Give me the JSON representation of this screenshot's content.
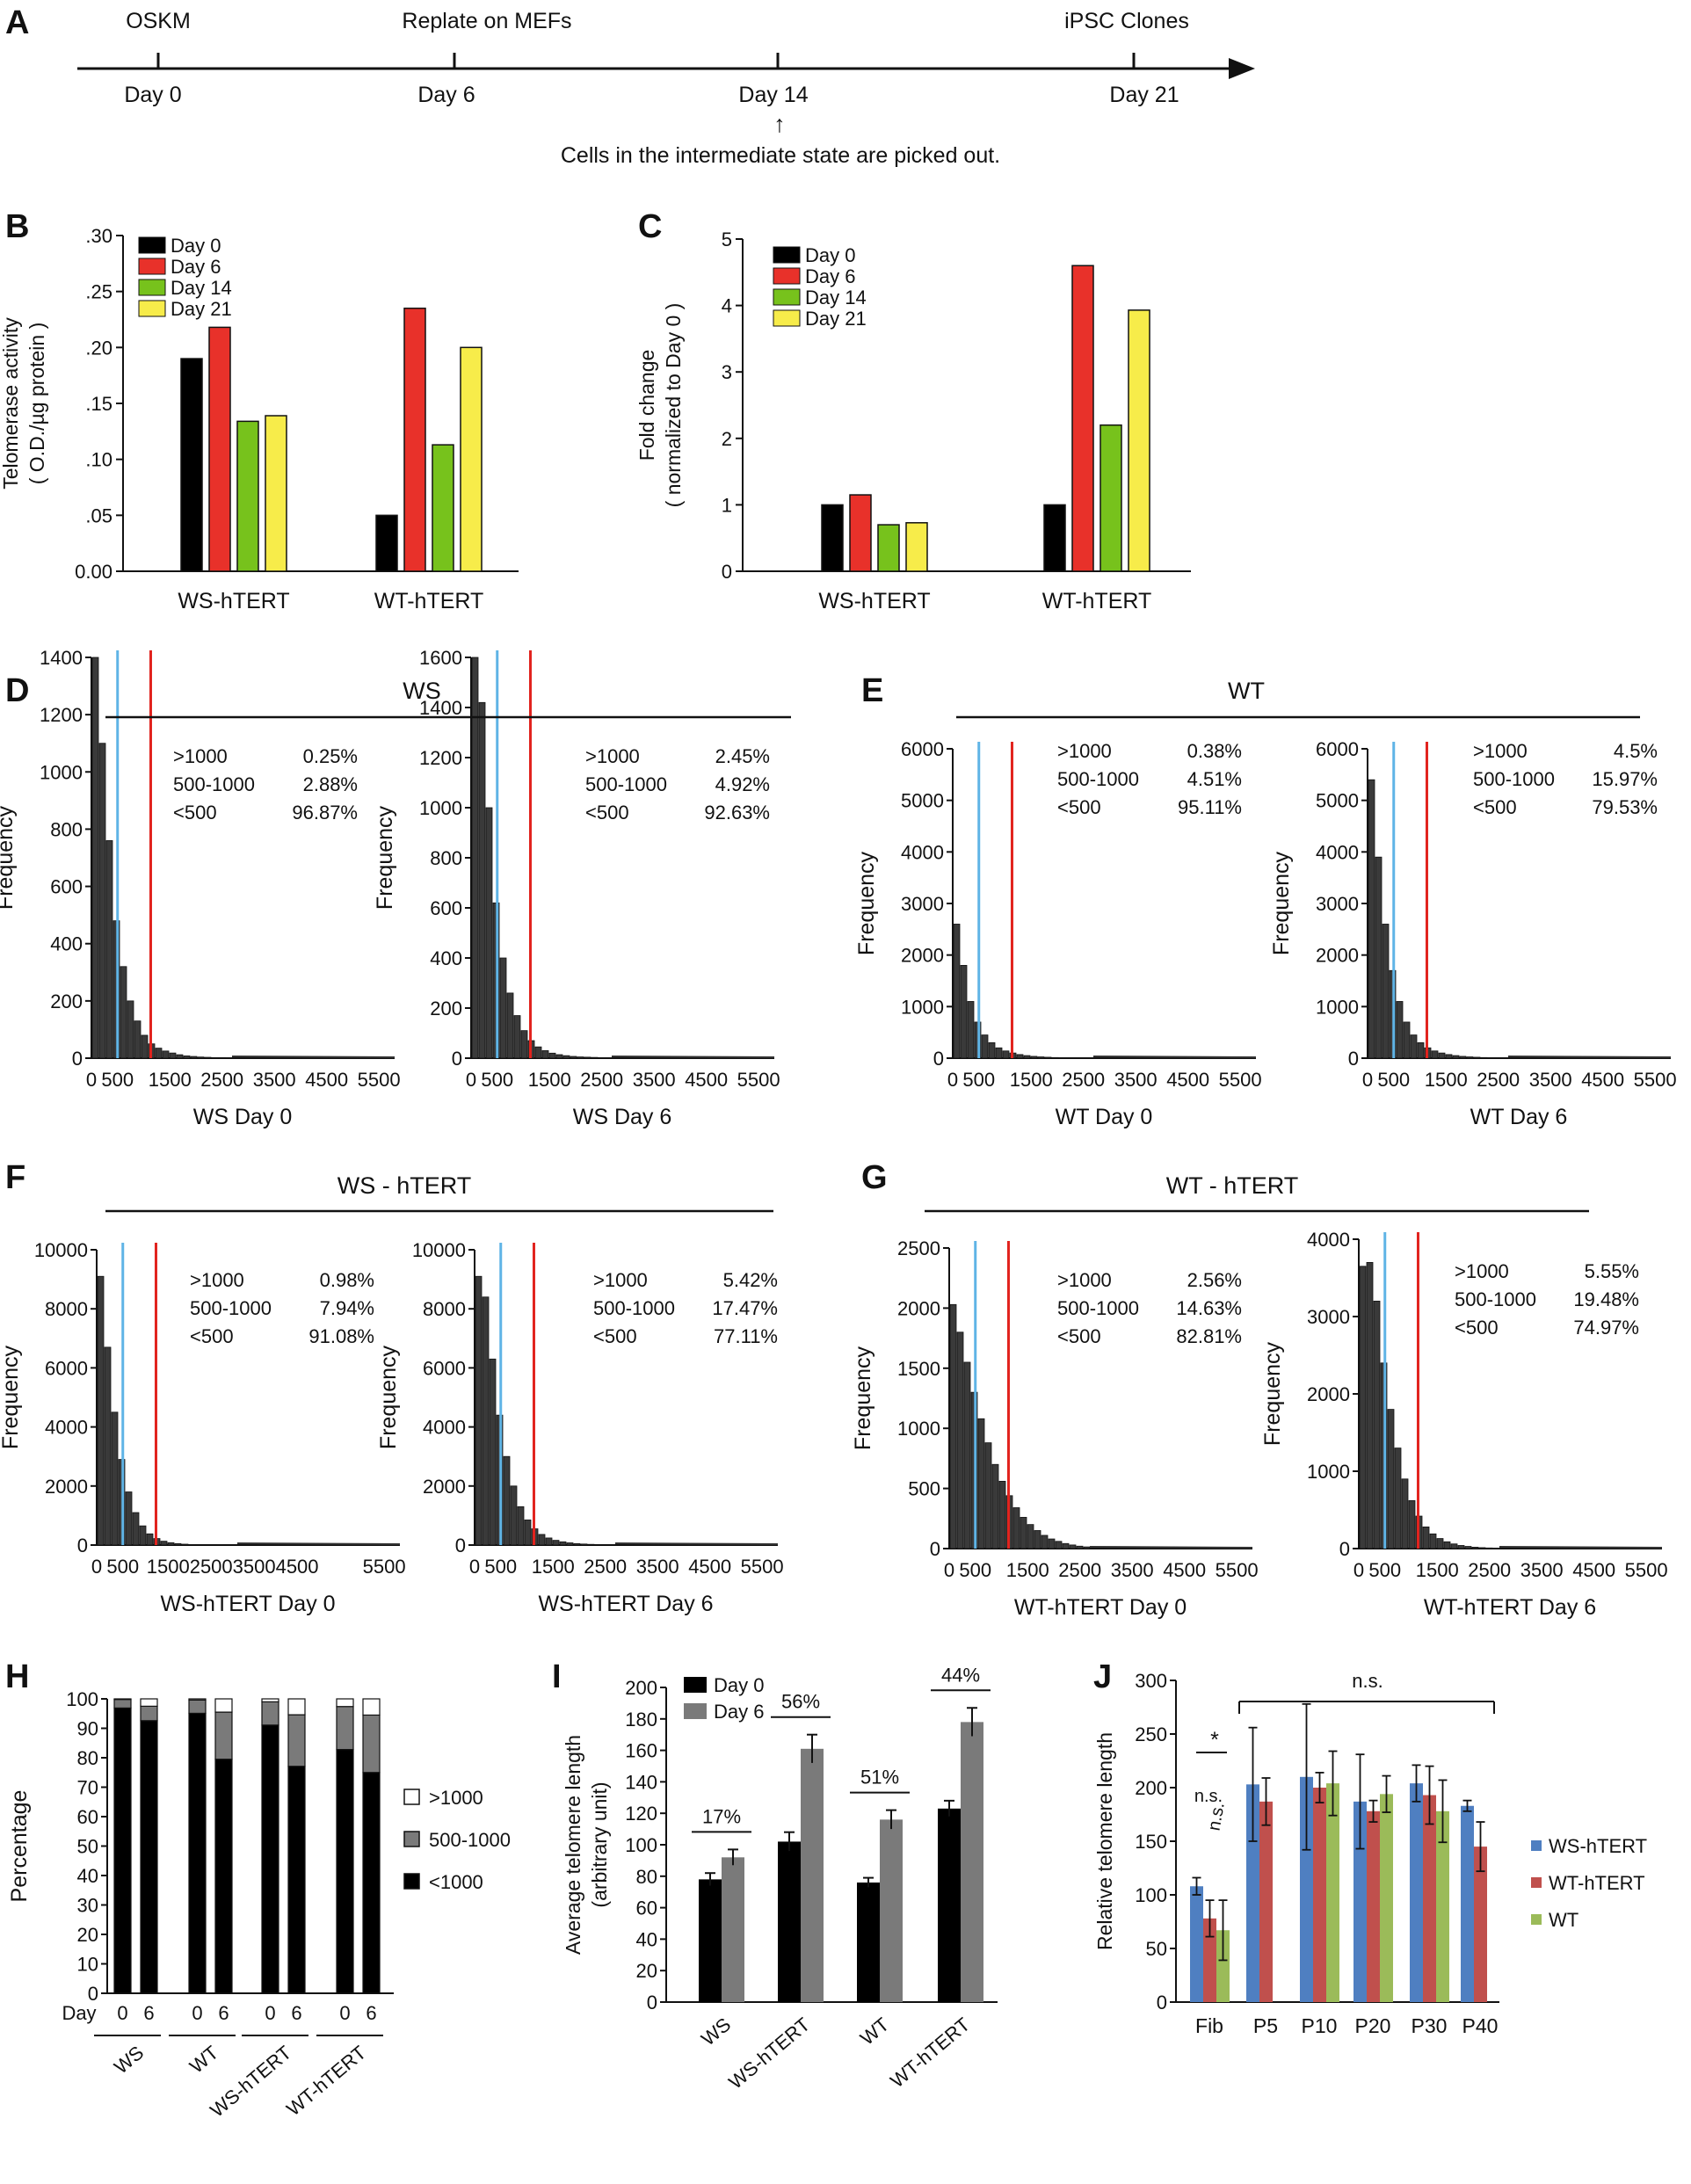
{
  "panels": {
    "A": "A",
    "B": "B",
    "C": "C",
    "D": "D",
    "E": "E",
    "F": "F",
    "G": "G",
    "H": "H",
    "I": "I",
    "J": "J"
  },
  "timeline": {
    "events": [
      {
        "top": "OSKM",
        "bottom": "Day 0"
      },
      {
        "top": "Replate on MEFs",
        "bottom": "Day 6"
      },
      {
        "top": "",
        "bottom": "Day 14"
      },
      {
        "top": "iPSC Clones",
        "bottom": "Day 21"
      }
    ],
    "arrow_symbol": "↑",
    "note": "Cells in the intermediate state are picked out."
  },
  "colors": {
    "day0": "#000000",
    "day6": "#e8312a",
    "day14": "#77c21c",
    "day21": "#f7ec4a",
    "blue_line": "#5fb4e6",
    "red_line": "#e1231e",
    "ws_htert": "#4f7fc1",
    "wt_htert": "#c0504d",
    "wt": "#9bbb59",
    "gray": "#7a7a7a"
  },
  "chart_data": [
    {
      "id": "B",
      "type": "bar",
      "ylabel_lines": [
        "Telomerase activity",
        "( O.D./µg protein )"
      ],
      "ylim": [
        0,
        0.3
      ],
      "yticks": [
        ".30",
        ".25",
        ".20",
        ".15",
        ".10",
        ".05",
        "0.00"
      ],
      "categories": [
        "WS-hTERT",
        "WT-hTERT"
      ],
      "series": [
        {
          "name": "Day 0",
          "values": [
            0.19,
            0.05
          ]
        },
        {
          "name": "Day 6",
          "values": [
            0.218,
            0.235
          ]
        },
        {
          "name": "Day 14",
          "values": [
            0.134,
            0.113
          ]
        },
        {
          "name": "Day 21",
          "values": [
            0.139,
            0.2
          ]
        }
      ]
    },
    {
      "id": "C",
      "type": "bar",
      "ylabel_lines": [
        "Fold change",
        "( normalized to Day 0 )"
      ],
      "ylim": [
        0,
        5
      ],
      "yticks": [
        "5",
        "4",
        "3",
        "2",
        "1",
        "0"
      ],
      "categories": [
        "WS-hTERT",
        "WT-hTERT"
      ],
      "series": [
        {
          "name": "Day 0",
          "values": [
            1.0,
            1.0
          ]
        },
        {
          "name": "Day 6",
          "values": [
            1.15,
            4.6
          ]
        },
        {
          "name": "Day 14",
          "values": [
            0.7,
            2.2
          ]
        },
        {
          "name": "Day 21",
          "values": [
            0.73,
            3.93
          ]
        }
      ]
    },
    {
      "id": "D1",
      "type": "bar",
      "group": "WS",
      "xlabel": "WS Day 0",
      "ylabel": "Frequency",
      "ymax": 1400,
      "yticks": [
        "1400",
        "1200",
        "1000",
        "800",
        "600",
        "400",
        "200",
        "0"
      ],
      "xticks": [
        "0",
        "500",
        "1500",
        "2500",
        "3500",
        "4500",
        "5500"
      ],
      "xmax": 5800,
      "thresholds": [
        500,
        1000
      ],
      "histogram": [
        1400,
        1100,
        760,
        480,
        320,
        200,
        130,
        80,
        50,
        35,
        25,
        18,
        12,
        8,
        6,
        4,
        3,
        2,
        2,
        1
      ],
      "stats": [
        [
          ">1000",
          "0.25%"
        ],
        [
          "500-1000",
          "2.88%"
        ],
        [
          "<500",
          "96.87%"
        ]
      ]
    },
    {
      "id": "D2",
      "type": "bar",
      "group": "WS",
      "xlabel": "WS Day 6",
      "ylabel": "Frequency",
      "ymax": 1600,
      "yticks": [
        "1600",
        "1400",
        "1200",
        "1000",
        "800",
        "600",
        "400",
        "200",
        "0"
      ],
      "xticks": [
        "0",
        "500",
        "1500",
        "2500",
        "3500",
        "4500",
        "5500"
      ],
      "xmax": 5800,
      "thresholds": [
        500,
        1000
      ],
      "histogram": [
        1600,
        1420,
        1000,
        620,
        400,
        260,
        170,
        110,
        70,
        45,
        30,
        20,
        14,
        10,
        7,
        5,
        4,
        3,
        2,
        1
      ],
      "stats": [
        [
          ">1000",
          "2.45%"
        ],
        [
          "500-1000",
          "4.92%"
        ],
        [
          "<500",
          "92.63%"
        ]
      ]
    },
    {
      "id": "E1",
      "type": "bar",
      "group": "WT",
      "xlabel": "WT Day 0",
      "ylabel": "Frequency",
      "ymax": 6000,
      "yticks": [
        "6000",
        "5000",
        "4000",
        "3000",
        "2000",
        "1000",
        "0"
      ],
      "xticks": [
        "0",
        "500",
        "1500",
        "2500",
        "3500",
        "4500",
        "5500"
      ],
      "xmax": 5800,
      "thresholds": [
        500,
        1000
      ],
      "histogram": [
        2600,
        1800,
        1100,
        700,
        450,
        300,
        200,
        140,
        100,
        70,
        50,
        35,
        25,
        18,
        12,
        8,
        5,
        3,
        2,
        1
      ],
      "stats": [
        [
          ">1000",
          "0.38%"
        ],
        [
          "500-1000",
          "4.51%"
        ],
        [
          "<500",
          "95.11%"
        ]
      ]
    },
    {
      "id": "E2",
      "type": "bar",
      "group": "WT",
      "xlabel": "WT Day 6",
      "ylabel": "Frequency",
      "ymax": 6000,
      "yticks": [
        "6000",
        "5000",
        "4000",
        "3000",
        "2000",
        "1000",
        "0"
      ],
      "xticks": [
        "0",
        "500",
        "1500",
        "2500",
        "3500",
        "4500",
        "5500"
      ],
      "xmax": 5800,
      "thresholds": [
        500,
        1000
      ],
      "histogram": [
        5400,
        3900,
        2600,
        1700,
        1100,
        700,
        450,
        300,
        200,
        140,
        100,
        70,
        50,
        35,
        25,
        18,
        12,
        8,
        5,
        3
      ],
      "stats": [
        [
          ">1000",
          "4.5%"
        ],
        [
          "500-1000",
          "15.97%"
        ],
        [
          "<500",
          "79.53%"
        ]
      ]
    },
    {
      "id": "F1",
      "type": "bar",
      "group": "WS - hTERT",
      "xlabel": "WS-hTERT Day 0",
      "ylabel": "Frequency",
      "ymax": 10000,
      "yticks": [
        "10000",
        "8000",
        "6000",
        "4000",
        "2000",
        "0"
      ],
      "xticks": [
        "0",
        "500",
        "1500",
        "2500",
        "3500",
        "4500",
        "5500"
      ],
      "xtick_text": [
        "0",
        "500",
        "1500250035004500",
        "5500"
      ],
      "xmax": 5800,
      "thresholds": [
        500,
        1000
      ],
      "histogram": [
        9100,
        6700,
        4500,
        2900,
        1800,
        1100,
        650,
        380,
        220,
        130,
        80,
        50,
        30,
        18,
        10,
        6,
        4,
        2,
        1,
        1
      ],
      "stats": [
        [
          ">1000",
          "0.98%"
        ],
        [
          "500-1000",
          "7.94%"
        ],
        [
          "<500",
          "91.08%"
        ]
      ]
    },
    {
      "id": "F2",
      "type": "bar",
      "group": "WS - hTERT",
      "xlabel": "WS-hTERT Day 6",
      "ylabel": "Frequency",
      "ymax": 10000,
      "yticks": [
        "10000",
        "8000",
        "6000",
        "4000",
        "2000",
        "0"
      ],
      "xticks": [
        "0",
        "500",
        "1500",
        "2500",
        "3500",
        "4500",
        "5500"
      ],
      "xmax": 5800,
      "thresholds": [
        500,
        1000
      ],
      "histogram": [
        9100,
        8400,
        6300,
        4400,
        3000,
        2000,
        1300,
        850,
        550,
        360,
        240,
        160,
        110,
        75,
        50,
        35,
        24,
        16,
        10,
        6
      ],
      "stats": [
        [
          ">1000",
          "5.42%"
        ],
        [
          "500-1000",
          "17.47%"
        ],
        [
          "<500",
          "77.11%"
        ]
      ]
    },
    {
      "id": "G1",
      "type": "bar",
      "group": "WT - hTERT",
      "xlabel": "WT-hTERT Day 0",
      "ylabel": "Frequency",
      "ymax": 2500,
      "yticks": [
        "2500",
        "2000",
        "1500",
        "1000",
        "500",
        "0"
      ],
      "xticks": [
        "0",
        "500",
        "1500",
        "2500",
        "3500",
        "4500",
        "5500"
      ],
      "xmax": 5800,
      "thresholds": [
        500,
        1000
      ],
      "histogram": [
        2030,
        1800,
        1550,
        1300,
        1080,
        880,
        700,
        560,
        440,
        340,
        260,
        200,
        150,
        110,
        80,
        60,
        42,
        30,
        20,
        14
      ],
      "stats": [
        [
          ">1000",
          "2.56%"
        ],
        [
          "500-1000",
          "14.63%"
        ],
        [
          "<500",
          "82.81%"
        ]
      ]
    },
    {
      "id": "G2",
      "type": "bar",
      "group": "WT - hTERT",
      "xlabel": "WT-hTERT Day 6",
      "ylabel": "Frequency",
      "ymax": 4000,
      "yticks": [
        "4000",
        "3000",
        "2000",
        "1000",
        "0"
      ],
      "xticks": [
        "0",
        "500",
        "1500",
        "2500",
        "3500",
        "4500",
        "5500"
      ],
      "xmax": 5800,
      "thresholds": [
        500,
        1000
      ],
      "histogram": [
        3650,
        3700,
        3200,
        2400,
        1800,
        1300,
        900,
        620,
        420,
        280,
        190,
        130,
        88,
        60,
        40,
        28,
        18,
        12,
        8,
        5
      ],
      "stats": [
        [
          ">1000",
          "5.55%"
        ],
        [
          "500-1000",
          "19.48%"
        ],
        [
          "<500",
          "74.97%"
        ]
      ]
    },
    {
      "id": "H",
      "type": "bar",
      "stacked": true,
      "ylabel": "Percentage",
      "ylim": [
        0,
        100
      ],
      "yticks": [
        "100",
        "90",
        "80",
        "70",
        "60",
        "50",
        "40",
        "30",
        "20",
        "10",
        "0"
      ],
      "day_label": "Day",
      "bar_days": [
        "0",
        "6",
        "0",
        "6",
        "0",
        "6",
        "0",
        "6"
      ],
      "groups": [
        "WS",
        "WT",
        "WS-hTERT",
        "WT-hTERT"
      ],
      "series": [
        {
          "name": "<1000",
          "values": [
            96.9,
            92.6,
            95.1,
            79.5,
            91.1,
            77.1,
            82.8,
            75.0
          ]
        },
        {
          "name": "500-1000",
          "values": [
            2.9,
            4.9,
            4.5,
            16.0,
            7.9,
            17.5,
            14.6,
            19.5
          ]
        },
        {
          "name": ">1000",
          "values": [
            0.2,
            2.5,
            0.4,
            4.5,
            1.0,
            5.4,
            2.6,
            5.5
          ]
        }
      ]
    },
    {
      "id": "I",
      "type": "bar",
      "ylabel_lines": [
        "Average telomere length",
        "(arbitrary unit)"
      ],
      "ylim": [
        0,
        200
      ],
      "yticks": [
        "200",
        "180",
        "160",
        "140",
        "120",
        "100",
        "80",
        "60",
        "40",
        "20",
        "0"
      ],
      "categories": [
        "WS",
        "WS-hTERT",
        "WT",
        "WT-hTERT"
      ],
      "series": [
        {
          "name": "Day 0",
          "values": [
            78,
            102,
            76,
            123
          ],
          "errors": [
            4,
            6,
            3,
            5
          ]
        },
        {
          "name": "Day 6",
          "values": [
            92,
            161,
            116,
            178
          ],
          "errors": [
            5,
            9,
            6,
            9
          ]
        }
      ],
      "annotations": [
        "17%",
        "56%",
        "51%",
        "44%"
      ]
    },
    {
      "id": "J",
      "type": "bar",
      "ylabel": "Relative telomere length",
      "ylim": [
        0,
        300
      ],
      "yticks": [
        "300",
        "250",
        "200",
        "150",
        "100",
        "50",
        "0"
      ],
      "categories": [
        "Fib",
        "P5",
        "P10",
        "P20",
        "P30",
        "P40"
      ],
      "series": [
        {
          "name": "WS-hTERT",
          "values": [
            108,
            203,
            210,
            187,
            204,
            183
          ],
          "errors": [
            8,
            53,
            68,
            44,
            17,
            5
          ]
        },
        {
          "name": "WT-hTERT",
          "values": [
            78,
            187,
            200,
            178,
            193,
            145
          ],
          "errors": [
            17,
            22,
            14,
            10,
            27,
            23
          ]
        },
        {
          "name": "WT",
          "values": [
            67,
            null,
            204,
            194,
            178,
            null
          ],
          "errors": [
            28,
            null,
            30,
            17,
            29,
            null
          ]
        }
      ],
      "annotations": {
        "sig": "*",
        "ns": "n.s."
      }
    }
  ]
}
